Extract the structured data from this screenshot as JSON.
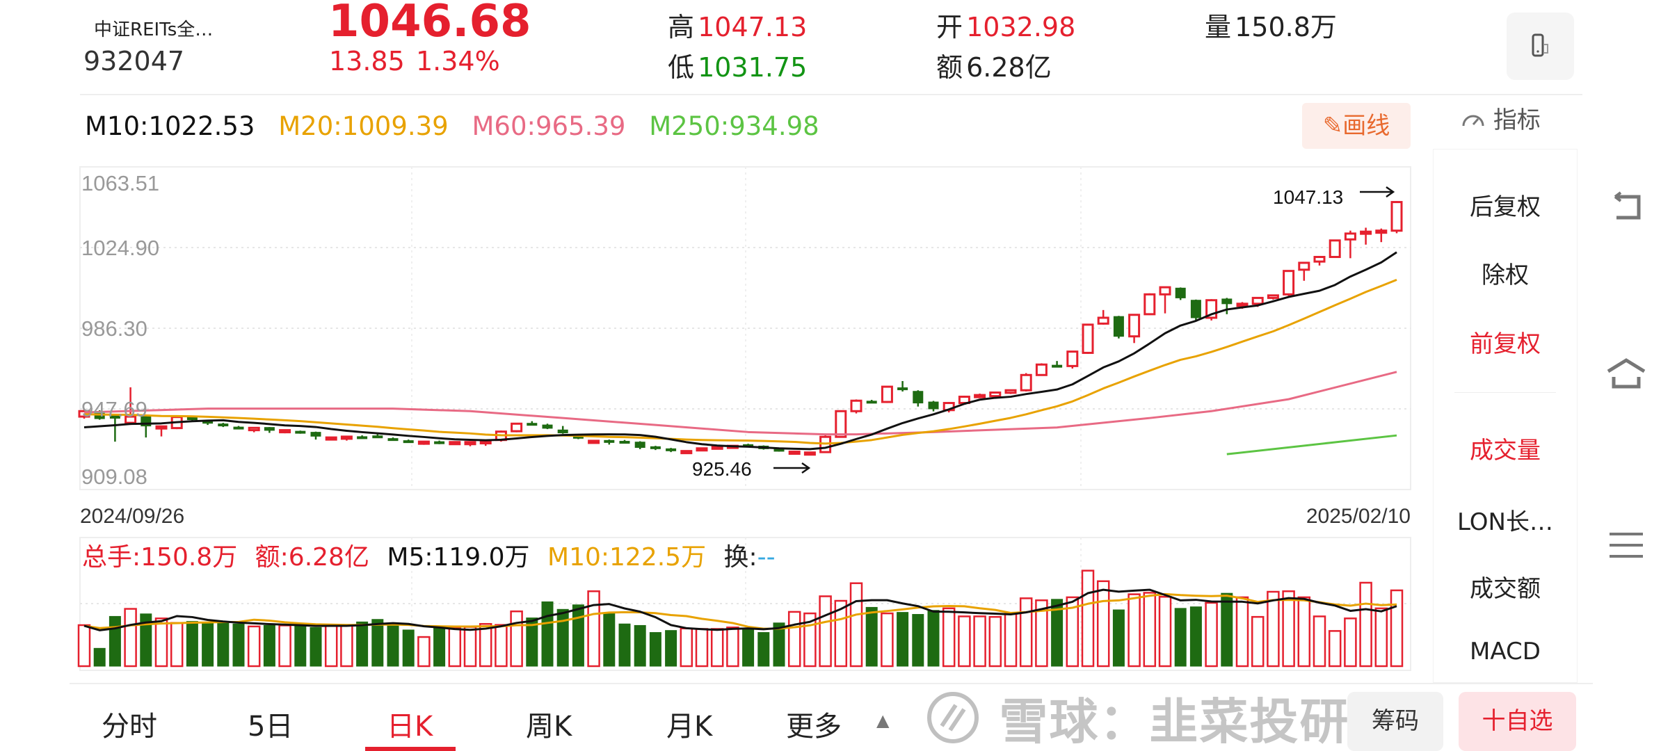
{
  "header": {
    "name": "中证REITs全…",
    "code": "932047",
    "price": "1046.68",
    "change": "13.85",
    "change_pct": "1.34%",
    "high_label": "高",
    "high": "1047.13",
    "low_label": "低",
    "low": "1031.75",
    "open_label": "开",
    "open": "1032.98",
    "amount_label": "额",
    "amount": "6.28亿",
    "volume_label": "量",
    "volume": "150.8万",
    "device_icon": "phone-landscape-icon"
  },
  "ma_legend": {
    "m10": "M10:1022.53",
    "m20": "M20:1009.39",
    "m60": "M60:965.39",
    "m250": "M250:934.98"
  },
  "draw_button": {
    "icon": "pencil-icon",
    "label": "画线"
  },
  "indicator_button": {
    "icon": "gauge-icon",
    "label": "指标"
  },
  "side_menu": {
    "items": [
      {
        "label": "后复权",
        "active": false
      },
      {
        "label": "除权",
        "active": false
      },
      {
        "label": "前复权",
        "active": true
      },
      {
        "label": "成交量",
        "active": true
      },
      {
        "label": "LON长…",
        "active": false
      },
      {
        "label": "成交额",
        "active": false
      },
      {
        "label": "MACD",
        "active": false
      }
    ]
  },
  "nav_icons": [
    "back-icon",
    "home-icon",
    "menu-icon"
  ],
  "volume_legend": {
    "total": "总手:150.8万",
    "amount": "额:6.28亿",
    "m5": "M5:119.0万",
    "m10": "M10:122.5万",
    "turnover_label": "换:",
    "turnover_value": "--"
  },
  "bottom_tabs": [
    {
      "label": "分时",
      "active": false
    },
    {
      "label": "5日",
      "active": false
    },
    {
      "label": "日K",
      "active": true
    },
    {
      "label": "周K",
      "active": false
    },
    {
      "label": "月K",
      "active": false
    },
    {
      "label": "更多",
      "active": false
    }
  ],
  "bottom_buttons": {
    "chips": "筹码",
    "add_watch": "十自选"
  },
  "watermark": "雪球：韭菜投研",
  "colors": {
    "up": "#e5202e",
    "down": "#1e6b12",
    "m10": "#111111",
    "m20": "#e8a200",
    "m60": "#e86a84",
    "m250": "#5cc443",
    "accent": "#e5202e"
  },
  "chart_data": {
    "type": "candlestick",
    "y_ticks": [
      "1063.51",
      "1024.90",
      "986.30",
      "947.69",
      "909.08"
    ],
    "ylim": [
      909.08,
      1063.51
    ],
    "x_start": "2024/09/26",
    "x_end": "2025/02/10",
    "max_label": "1047.13",
    "min_label": "925.46",
    "grid": true,
    "ohlc": [
      [
        944,
        947.5,
        943,
        946.6
      ],
      [
        946.5,
        947,
        942.5,
        943
      ],
      [
        944.5,
        945,
        932,
        943.2
      ],
      [
        941,
        958,
        940,
        944
      ],
      [
        944,
        944.5,
        934,
        939.5
      ],
      [
        938.7,
        939.5,
        934.5,
        939.3
      ],
      [
        938.5,
        944.5,
        938,
        943.8
      ],
      [
        943.8,
        944.5,
        942,
        942.5
      ],
      [
        942,
        942.5,
        940,
        940.8
      ],
      [
        940.5,
        941,
        939,
        939.8
      ],
      [
        939,
        939.5,
        938,
        938.5
      ],
      [
        937.5,
        938.8,
        936.5,
        938.6
      ],
      [
        938.8,
        939,
        936.2,
        937.4
      ],
      [
        937,
        937.6,
        936,
        937.5
      ],
      [
        937,
        937.3,
        935.8,
        936.6
      ],
      [
        936.5,
        936.8,
        933,
        934.6
      ],
      [
        933.2,
        934.3,
        932.6,
        934
      ],
      [
        933.6,
        934.5,
        932.5,
        934.4
      ],
      [
        934.4,
        935,
        933.6,
        934.2
      ],
      [
        934.8,
        935.5,
        933.8,
        934.2
      ],
      [
        933.5,
        934,
        932.6,
        932.8
      ],
      [
        932.5,
        933,
        931.4,
        932
      ],
      [
        931.2,
        932.2,
        930.5,
        932
      ],
      [
        932,
        932.5,
        930.8,
        931.4
      ],
      [
        931.2,
        932,
        930.6,
        931.8
      ],
      [
        931.4,
        932,
        929.8,
        931.8
      ],
      [
        931.5,
        932.6,
        930,
        932.2
      ],
      [
        932.8,
        937.3,
        932,
        936.8
      ],
      [
        937,
        941,
        936.5,
        940.6
      ],
      [
        940.8,
        941.8,
        940,
        940.6
      ],
      [
        940,
        940.6,
        938,
        938.4
      ],
      [
        937.6,
        939.5,
        935.8,
        936.2
      ],
      [
        935,
        935.4,
        933.2,
        933.6
      ],
      [
        932,
        932.8,
        931.6,
        932.4
      ],
      [
        932.6,
        933,
        930.6,
        932.2
      ],
      [
        932.2,
        932.8,
        931.2,
        931.6
      ],
      [
        931.8,
        932.2,
        928.4,
        929.2
      ],
      [
        929.6,
        930,
        928,
        928.6
      ],
      [
        928.6,
        929,
        927,
        928
      ],
      [
        927.2,
        927.8,
        926.8,
        927.5
      ],
      [
        928,
        929.2,
        927.6,
        928.8
      ],
      [
        929.4,
        930,
        928.8,
        929.6
      ],
      [
        929.6,
        930.2,
        929.2,
        930
      ],
      [
        930.6,
        931,
        929.6,
        930.2
      ],
      [
        929.9,
        930.2,
        928.2,
        928.6
      ],
      [
        928.4,
        928.6,
        927.2,
        927.6
      ],
      [
        926.6,
        927.6,
        926,
        927.2
      ],
      [
        926,
        927,
        925.46,
        926.8
      ],
      [
        927,
        935,
        926.8,
        934.3
      ],
      [
        934.3,
        947,
        934,
        946.6
      ],
      [
        946.6,
        952.2,
        945.5,
        951.6
      ],
      [
        951.4,
        952,
        950.6,
        951
      ],
      [
        951,
        958.6,
        950.5,
        958.3
      ],
      [
        957.8,
        961,
        956,
        957
      ],
      [
        956.1,
        956.6,
        948.8,
        950.5
      ],
      [
        951,
        951.5,
        946.5,
        947.7
      ],
      [
        947.1,
        951,
        946,
        950.5
      ],
      [
        950.5,
        954,
        950,
        953.5
      ],
      [
        953.4,
        955,
        952.8,
        954.3
      ],
      [
        953.8,
        955.8,
        953.2,
        955.5
      ],
      [
        955.4,
        956.8,
        954.8,
        956.6
      ],
      [
        956.6,
        964.8,
        956,
        963.9
      ],
      [
        963.9,
        969.5,
        963.5,
        968.9
      ],
      [
        968.6,
        970.6,
        967.5,
        968.2
      ],
      [
        968.2,
        975.4,
        967,
        975.1
      ],
      [
        974.5,
        988.3,
        974,
        988
      ],
      [
        988.5,
        995,
        988,
        991.3
      ],
      [
        991.9,
        992.2,
        981.4,
        982.4
      ],
      [
        982.4,
        993,
        979.2,
        992.7
      ],
      [
        993,
        1003,
        992.6,
        1002.5
      ],
      [
        1002.5,
        1006.1,
        993.4,
        1005.9
      ],
      [
        1005.5,
        1005.8,
        999.8,
        1000.8
      ],
      [
        999.7,
        1000,
        989.5,
        991.3
      ],
      [
        991.3,
        1000.2,
        990,
        999.7
      ],
      [
        1000.3,
        1000.8,
        993,
        998
      ],
      [
        997.5,
        998.8,
        995.6,
        998
      ],
      [
        998,
        1001.2,
        996.5,
        1000.8
      ],
      [
        1000.8,
        1002.3,
        1000,
        1002
      ],
      [
        1002.5,
        1014,
        1001.8,
        1013.7
      ],
      [
        1014.3,
        1018,
        1009,
        1017.6
      ],
      [
        1018.2,
        1020.8,
        1016.3,
        1020.4
      ],
      [
        1020.4,
        1028.6,
        1020,
        1028.3
      ],
      [
        1028.8,
        1033,
        1019.8,
        1031.6
      ],
      [
        1031.8,
        1034.4,
        1026.3,
        1032.5
      ],
      [
        1032.5,
        1034,
        1027.5,
        1033
      ],
      [
        1032.98,
        1047.13,
        1031.75,
        1046.68
      ]
    ],
    "m60_points": [
      [
        0,
        946
      ],
      [
        8,
        947.8
      ],
      [
        20,
        947.8
      ],
      [
        25,
        946.6
      ],
      [
        31,
        943.3
      ],
      [
        37,
        940
      ],
      [
        43,
        936.6
      ],
      [
        48,
        935.5
      ],
      [
        50,
        935.5
      ],
      [
        55,
        936.6
      ],
      [
        63,
        938.8
      ],
      [
        69,
        943.3
      ],
      [
        73,
        946.6
      ],
      [
        78,
        952.3
      ],
      [
        85,
        965.39
      ]
    ],
    "m250_points": [
      [
        74,
        926
      ],
      [
        85,
        934.98
      ]
    ],
    "volume_unit": "万",
    "volume": [
      81.6,
      35.5,
      99,
      114,
      104,
      95,
      86,
      89,
      86,
      88,
      84,
      79,
      81,
      81,
      82,
      77,
      80,
      81,
      88,
      93,
      86,
      72,
      58,
      76,
      77,
      78,
      84,
      82,
      109,
      96,
      128,
      113,
      122,
      149,
      106,
      84,
      81,
      67,
      71,
      75,
      74,
      74,
      77,
      75,
      67,
      86,
      108,
      105,
      139,
      130,
      165,
      117,
      105,
      107,
      103,
      111,
      115,
      99,
      99,
      98,
      104,
      135,
      131,
      133,
      137,
      190,
      169,
      112,
      143,
      146,
      138,
      115,
      118,
      126,
      145,
      137,
      98,
      148,
      149,
      137,
      99,
      70,
      95,
      166,
      115,
      150.8
    ]
  }
}
